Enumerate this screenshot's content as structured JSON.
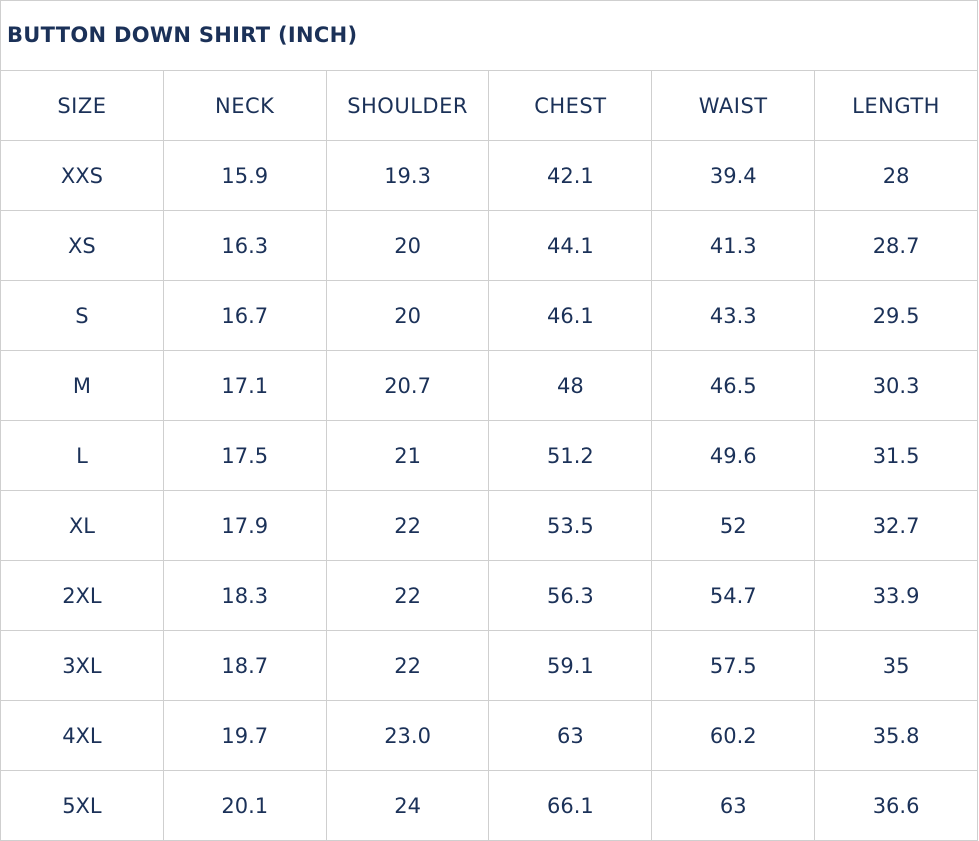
{
  "title": "BUTTON DOWN SHIRT (INCH)",
  "columns": [
    "SIZE",
    "NECK",
    "SHOULDER",
    "CHEST",
    "WAIST",
    "LENGTH"
  ],
  "rows": [
    [
      "XXS",
      "15.9",
      "19.3",
      "42.1",
      "39.4",
      "28"
    ],
    [
      "XS",
      "16.3",
      "20",
      "44.1",
      "41.3",
      "28.7"
    ],
    [
      "S",
      "16.7",
      "20",
      "46.1",
      "43.3",
      "29.5"
    ],
    [
      "M",
      "17.1",
      "20.7",
      "48",
      "46.5",
      "30.3"
    ],
    [
      "L",
      "17.5",
      "21",
      "51.2",
      "49.6",
      "31.5"
    ],
    [
      "XL",
      "17.9",
      "22",
      "53.5",
      "52",
      "32.7"
    ],
    [
      "2XL",
      "18.3",
      "22",
      "56.3",
      "54.7",
      "33.9"
    ],
    [
      "3XL",
      "18.7",
      "22",
      "59.1",
      "57.5",
      "35"
    ],
    [
      "4XL",
      "19.7",
      "23.0",
      "63",
      "60.2",
      "35.8"
    ],
    [
      "5XL",
      "20.1",
      "24",
      "66.1",
      "63",
      "36.6"
    ]
  ],
  "colors": {
    "text": "#1b3158",
    "border": "#cfcfcf"
  }
}
